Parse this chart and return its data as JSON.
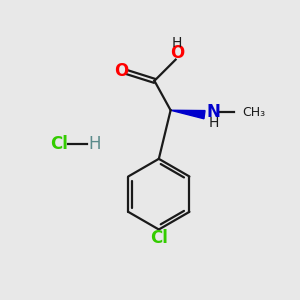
{
  "background_color": "#e8e8e8",
  "bond_color": "#1a1a1a",
  "o_color": "#ff0000",
  "n_color": "#0000cc",
  "cl_color": "#33cc00",
  "h_color": "#5a8a8a",
  "wedge_color": "#0000cc",
  "figsize": [
    3.0,
    3.0
  ],
  "dpi": 100,
  "xlim": [
    0,
    10
  ],
  "ylim": [
    0,
    10
  ]
}
